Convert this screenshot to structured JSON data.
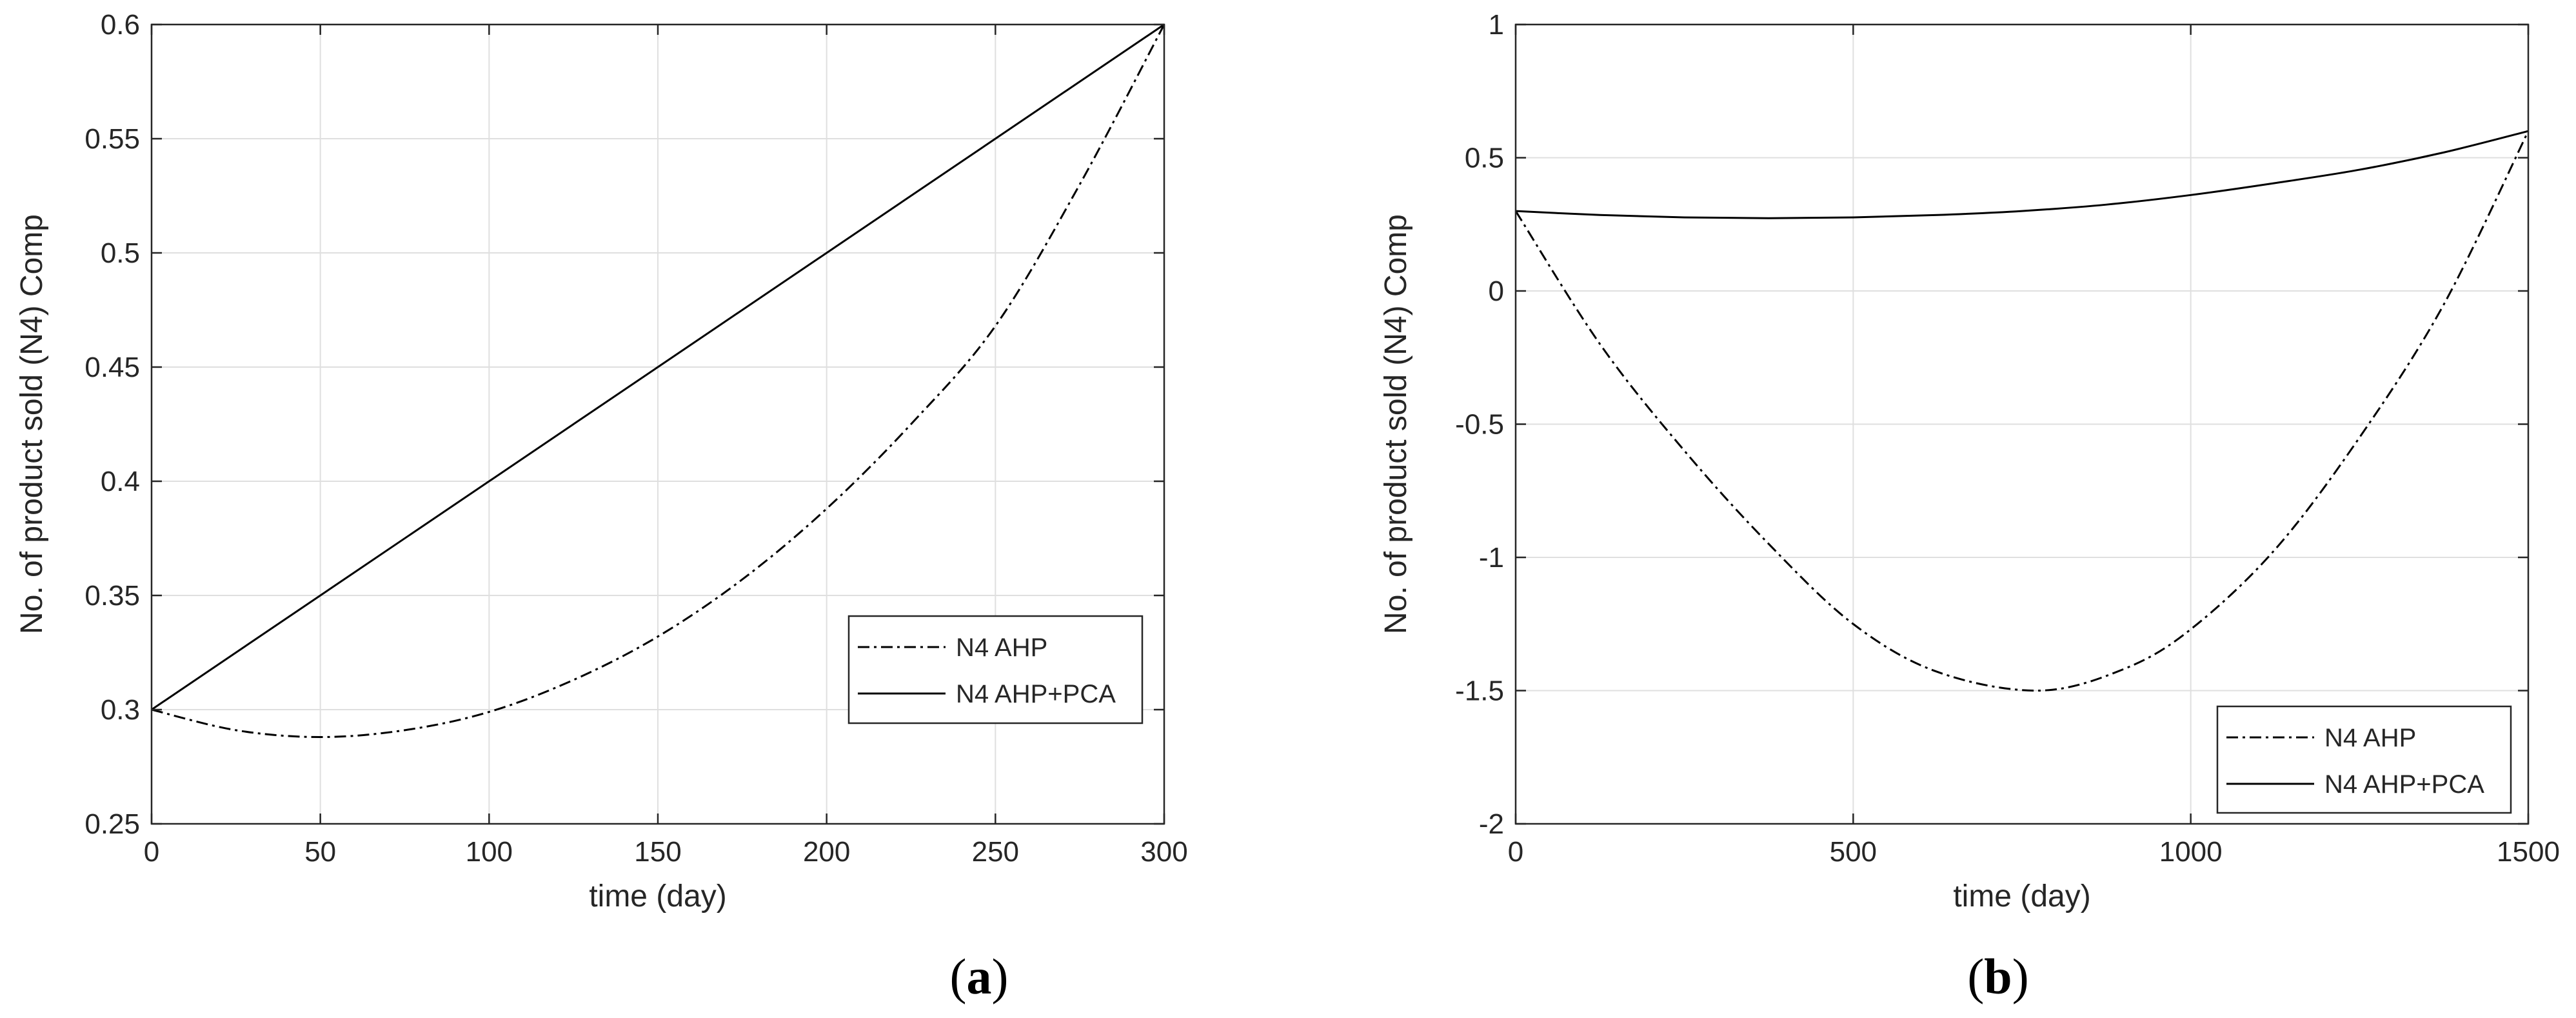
{
  "chart_data": [
    {
      "type": "line",
      "caption_letter": "a",
      "xlabel": "time (day)",
      "ylabel": "No. of product sold (N4) Comp",
      "xlim": [
        0,
        300
      ],
      "ylim": [
        0.25,
        0.6
      ],
      "xticks": [
        0,
        50,
        100,
        150,
        200,
        250,
        300
      ],
      "yticks": [
        0.25,
        0.3,
        0.35,
        0.4,
        0.45,
        0.5,
        0.55,
        0.6
      ],
      "xtick_labels": [
        "0",
        "50",
        "100",
        "150",
        "200",
        "250",
        "300"
      ],
      "ytick_labels": [
        "0.25",
        "0.3",
        "0.35",
        "0.4",
        "0.45",
        "0.5",
        "0.55",
        "0.6"
      ],
      "grid": true,
      "legend_position": "right",
      "series": [
        {
          "name": "N4 AHP",
          "style": "dash-dot",
          "x": [
            0,
            25,
            50,
            75,
            100,
            125,
            150,
            175,
            200,
            225,
            250,
            275,
            300
          ],
          "y": [
            0.3,
            0.291,
            0.288,
            0.291,
            0.299,
            0.313,
            0.332,
            0.357,
            0.388,
            0.425,
            0.468,
            0.53,
            0.6
          ]
        },
        {
          "name": "N4 AHP+PCA",
          "style": "solid",
          "x": [
            0,
            300
          ],
          "y": [
            0.3,
            0.6
          ]
        }
      ]
    },
    {
      "type": "line",
      "caption_letter": "b",
      "xlabel": "time (day)",
      "ylabel": "No. of product sold (N4) Comp",
      "xlim": [
        0,
        1500
      ],
      "ylim": [
        -2,
        1
      ],
      "xticks": [
        0,
        500,
        1000,
        1500
      ],
      "yticks": [
        -2,
        -1.5,
        -1,
        -0.5,
        0,
        0.5,
        1
      ],
      "xtick_labels": [
        "0",
        "500",
        "1000",
        "1500"
      ],
      "ytick_labels": [
        "-2",
        "-1.5",
        "-1",
        "-0.5",
        "0",
        "0.5",
        "1"
      ],
      "grid": true,
      "legend_position": "bottom-right",
      "series": [
        {
          "name": "N4 AHP",
          "style": "dash-dot",
          "x": [
            0,
            125,
            250,
            375,
            500,
            625,
            775,
            900,
            1000,
            1125,
            1250,
            1375,
            1500
          ],
          "y": [
            0.3,
            -0.2,
            -0.6,
            -0.95,
            -1.25,
            -1.43,
            -1.5,
            -1.42,
            -1.27,
            -0.97,
            -0.55,
            -0.05,
            0.6
          ]
        },
        {
          "name": "N4 AHP+PCA",
          "style": "solid",
          "x": [
            0,
            125,
            250,
            375,
            500,
            625,
            750,
            875,
            1000,
            1125,
            1250,
            1375,
            1500
          ],
          "y": [
            0.3,
            0.285,
            0.276,
            0.273,
            0.276,
            0.285,
            0.3,
            0.324,
            0.36,
            0.405,
            0.455,
            0.52,
            0.6
          ]
        }
      ]
    }
  ]
}
